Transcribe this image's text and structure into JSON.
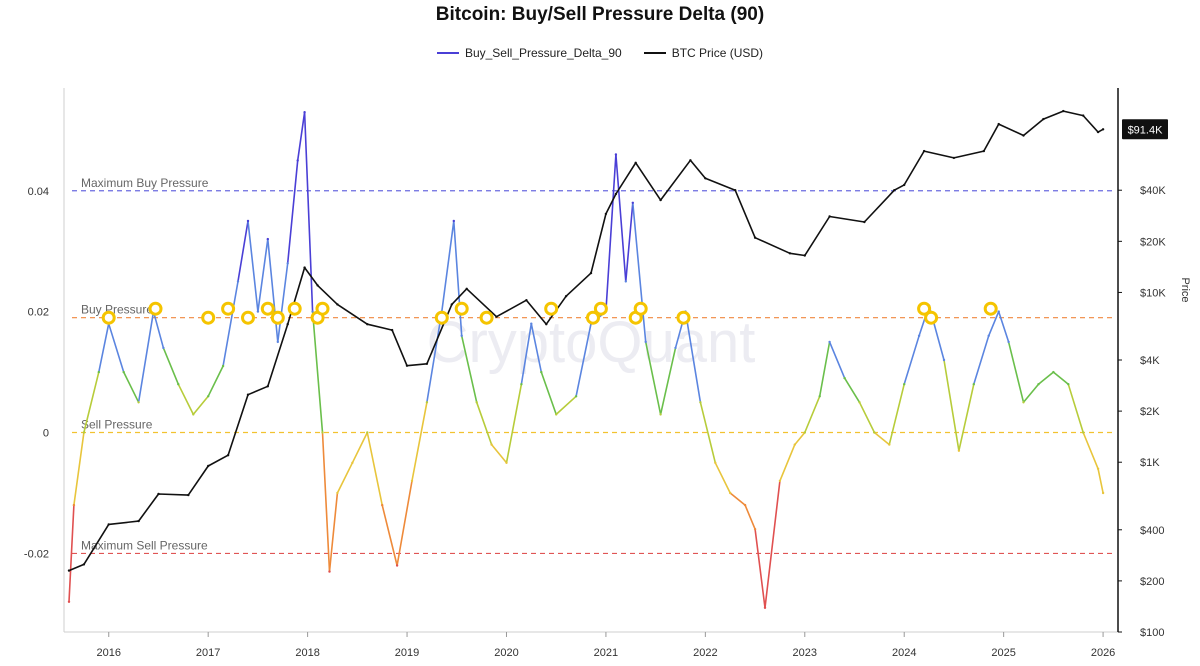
{
  "chart_data": {
    "type": "line",
    "title": "Bitcoin: Buy/Sell Pressure Delta (90)",
    "legend_position": "top-center",
    "watermark": "CryptoQuant",
    "x_ticks": [
      "2016",
      "2017",
      "2018",
      "2019",
      "2020",
      "2021",
      "2022",
      "2023",
      "2024",
      "2025",
      "2026"
    ],
    "left_axis": {
      "ticks": [
        "0.04",
        "0.02",
        "0",
        "-0.02"
      ],
      "ylim": [
        -0.033,
        0.057
      ]
    },
    "right_axis": {
      "label": "Price",
      "scale": "log",
      "ticks": [
        "$40K",
        "$20K",
        "$10K",
        "$4K",
        "$2K",
        "$1K",
        "$400",
        "$200",
        "$100"
      ],
      "ylim": [
        100,
        160000
      ]
    },
    "price_badge": "$91.4K",
    "reference_lines": [
      {
        "label": "Maximum Buy Pressure",
        "value": 0.04,
        "color": "#6b6be0"
      },
      {
        "label": "Buy Pressure",
        "value": 0.019,
        "color": "#f0883e"
      },
      {
        "label": "Sell Pressure",
        "value": 0,
        "color": "#f2c230"
      },
      {
        "label": "Maximum Sell Pressure",
        "value": -0.02,
        "color": "#e05555"
      }
    ],
    "series": [
      {
        "name": "Buy_Sell_Pressure_Delta_90",
        "axis": "left",
        "color": "#4a3fd6",
        "x": [
          2015.6,
          2015.65,
          2015.75,
          2015.9,
          2016.0,
          2016.15,
          2016.3,
          2016.45,
          2016.55,
          2016.7,
          2016.85,
          2017.0,
          2017.15,
          2017.3,
          2017.4,
          2017.5,
          2017.6,
          2017.7,
          2017.8,
          2017.9,
          2017.97,
          2018.05,
          2018.15,
          2018.22,
          2018.3,
          2018.45,
          2018.6,
          2018.75,
          2018.9,
          2019.05,
          2019.2,
          2019.35,
          2019.47,
          2019.55,
          2019.7,
          2019.85,
          2020.0,
          2020.15,
          2020.25,
          2020.35,
          2020.5,
          2020.7,
          2020.85,
          2021.0,
          2021.1,
          2021.2,
          2021.27,
          2021.4,
          2021.55,
          2021.7,
          2021.8,
          2021.95,
          2022.1,
          2022.25,
          2022.4,
          2022.5,
          2022.6,
          2022.75,
          2022.9,
          2023.0,
          2023.15,
          2023.25,
          2023.4,
          2023.55,
          2023.7,
          2023.85,
          2024.0,
          2024.15,
          2024.25,
          2024.4,
          2024.55,
          2024.7,
          2024.85,
          2024.95,
          2025.05,
          2025.2,
          2025.35,
          2025.5,
          2025.65,
          2025.8,
          2025.95,
          2026.0
        ],
        "values": [
          -0.028,
          -0.012,
          0.0,
          0.01,
          0.018,
          0.01,
          0.005,
          0.02,
          0.014,
          0.008,
          0.003,
          0.006,
          0.011,
          0.025,
          0.035,
          0.02,
          0.032,
          0.015,
          0.028,
          0.045,
          0.053,
          0.02,
          0.0,
          -0.023,
          -0.01,
          -0.005,
          0.0,
          -0.012,
          -0.022,
          -0.008,
          0.005,
          0.02,
          0.035,
          0.016,
          0.005,
          -0.002,
          -0.005,
          0.008,
          0.018,
          0.01,
          0.003,
          0.006,
          0.018,
          0.02,
          0.046,
          0.025,
          0.038,
          0.015,
          0.003,
          0.014,
          0.02,
          0.005,
          -0.005,
          -0.01,
          -0.012,
          -0.016,
          -0.029,
          -0.008,
          -0.002,
          0.0,
          0.006,
          0.015,
          0.009,
          0.005,
          0.0,
          -0.002,
          0.008,
          0.016,
          0.021,
          0.012,
          -0.003,
          0.008,
          0.016,
          0.02,
          0.015,
          0.005,
          0.008,
          0.01,
          0.008,
          0.0,
          -0.006,
          -0.01
        ]
      },
      {
        "name": "BTC Price (USD)",
        "axis": "right",
        "color": "#111111",
        "x": [
          2015.6,
          2015.75,
          2016.0,
          2016.3,
          2016.5,
          2016.8,
          2017.0,
          2017.2,
          2017.4,
          2017.6,
          2017.8,
          2017.97,
          2018.1,
          2018.3,
          2018.6,
          2018.85,
          2019.0,
          2019.2,
          2019.45,
          2019.6,
          2019.9,
          2020.2,
          2020.4,
          2020.6,
          2020.85,
          2021.0,
          2021.1,
          2021.3,
          2021.55,
          2021.85,
          2022.0,
          2022.3,
          2022.5,
          2022.85,
          2023.0,
          2023.25,
          2023.6,
          2023.9,
          2024.0,
          2024.2,
          2024.5,
          2024.8,
          2024.95,
          2025.2,
          2025.4,
          2025.6,
          2025.8,
          2025.95,
          2026.0
        ],
        "values": [
          230,
          250,
          430,
          450,
          650,
          640,
          950,
          1100,
          2500,
          2800,
          6500,
          14000,
          11000,
          8500,
          6500,
          6000,
          3700,
          3800,
          8500,
          10500,
          7200,
          9000,
          6500,
          9500,
          13000,
          29000,
          38000,
          58000,
          35000,
          60000,
          47000,
          40000,
          21000,
          17000,
          16500,
          28000,
          26000,
          40000,
          43000,
          68000,
          62000,
          68000,
          98000,
          84000,
          105000,
          117000,
          110000,
          88000,
          91400
        ]
      }
    ],
    "buy_pressure_markers_years": [
      2016.0,
      2016.47,
      2017.0,
      2017.2,
      2017.4,
      2017.6,
      2017.7,
      2017.87,
      2018.1,
      2018.15,
      2019.35,
      2019.55,
      2019.8,
      2020.45,
      2020.87,
      2020.95,
      2021.3,
      2021.35,
      2021.78,
      2024.2,
      2024.27,
      2024.87
    ]
  }
}
